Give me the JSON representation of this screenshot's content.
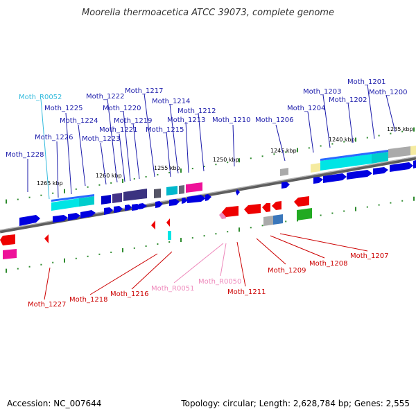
{
  "title": "Moorella thermoacetica ATCC 39073, complete genome",
  "footer": {
    "accession": "Accession: NC_007644",
    "topology": "Topology: circular; Length: 2,628,784 bp; Genes: 2,555"
  },
  "colors": {
    "forward_label": "#1a1aaa",
    "reverse_label": "#cc0000",
    "rna_forward_label": "#33bbdd",
    "rna_reverse_label": "#ee88bb",
    "genome_line": "#7a7a7a",
    "tick": "#2e8b2e"
  },
  "scale_labels": [
    "1265 kbp",
    "1260 kbp",
    "1255 kbp",
    "1250 kbp",
    "1245 kbp",
    "1240 kbp",
    "1235 kbp"
  ],
  "forward_labels": [
    "Moth_1228",
    "Moth_R0052",
    "Moth_1226",
    "Moth_1225",
    "Moth_1224",
    "Moth_1223",
    "Moth_1222",
    "Moth_1221",
    "Moth_1220",
    "Moth_1219",
    "Moth_1217",
    "Moth_1215",
    "Moth_1214",
    "Moth_1213",
    "Moth_1212",
    "Moth_1210",
    "Moth_1206",
    "Moth_1204",
    "Moth_1203",
    "Moth_1202",
    "Moth_1201",
    "Moth_1200"
  ],
  "reverse_labels": [
    "Moth_1227",
    "Moth_1218",
    "Moth_1216",
    "Moth_R0051",
    "Moth_R0050",
    "Moth_1211",
    "Moth_1209",
    "Moth_1208",
    "Moth_1207"
  ]
}
